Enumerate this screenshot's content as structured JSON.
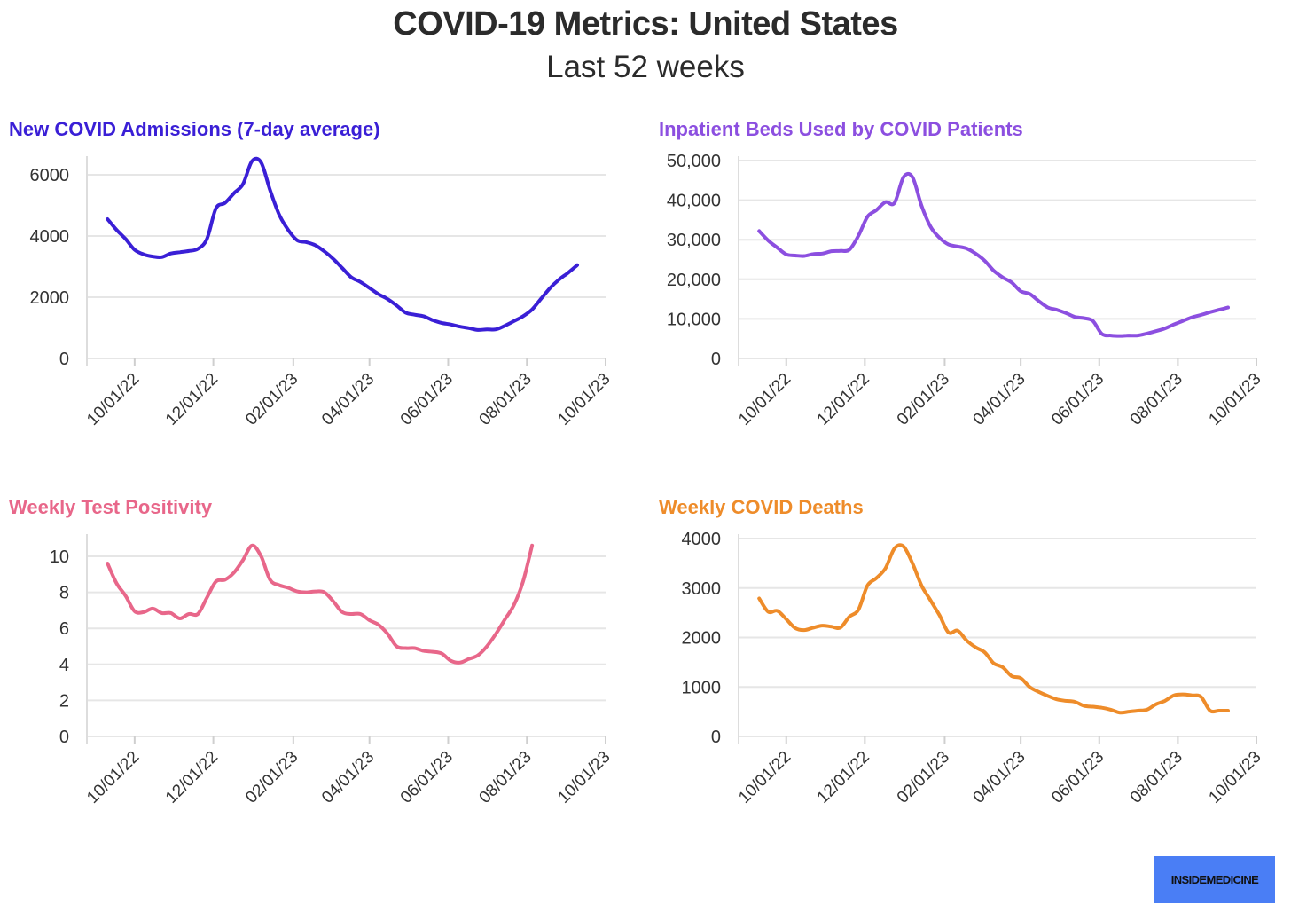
{
  "header": {
    "title": "COVID-19 Metrics: United States",
    "subtitle": "Last 52 weeks"
  },
  "logo": {
    "text": "INSIDEMEDICINE"
  },
  "chart_data": [
    {
      "type": "line",
      "title": "New COVID Admissions (7-day average)",
      "color": "#3a1fd6",
      "ylim": [
        0,
        6600
      ],
      "yticks": [
        0,
        2000,
        4000,
        6000
      ],
      "ytick_labels": [
        "0",
        "2000",
        "4000",
        "6000"
      ],
      "xticks": [
        "10/01/22",
        "12/01/22",
        "02/01/23",
        "04/01/23",
        "06/01/23",
        "08/01/23",
        "10/01/23"
      ],
      "grid": true,
      "series": [
        {
          "x": [
            "2022-09-10",
            "2022-09-17",
            "2022-09-24",
            "2022-10-01",
            "2022-10-08",
            "2022-10-15",
            "2022-10-22",
            "2022-10-29",
            "2022-11-05",
            "2022-11-12",
            "2022-11-19",
            "2022-11-26",
            "2022-12-03",
            "2022-12-10",
            "2022-12-17",
            "2022-12-24",
            "2022-12-31",
            "2023-01-07",
            "2023-01-14",
            "2023-01-21",
            "2023-01-28",
            "2023-02-04",
            "2023-02-11",
            "2023-02-18",
            "2023-02-25",
            "2023-03-04",
            "2023-03-11",
            "2023-03-18",
            "2023-03-25",
            "2023-04-01",
            "2023-04-08",
            "2023-04-15",
            "2023-04-22",
            "2023-04-29",
            "2023-05-06",
            "2023-05-13",
            "2023-05-20",
            "2023-05-27",
            "2023-06-03",
            "2023-06-10",
            "2023-06-17",
            "2023-06-24",
            "2023-07-01",
            "2023-07-08",
            "2023-07-15",
            "2023-07-22",
            "2023-07-29",
            "2023-08-05",
            "2023-08-12",
            "2023-08-19",
            "2023-08-26",
            "2023-09-02",
            "2023-09-09"
          ],
          "values": [
            4550,
            4200,
            3900,
            3550,
            3400,
            3330,
            3310,
            3430,
            3470,
            3510,
            3580,
            3900,
            4900,
            5080,
            5400,
            5700,
            6450,
            6400,
            5500,
            4700,
            4200,
            3860,
            3800,
            3700,
            3500,
            3250,
            2950,
            2650,
            2500,
            2300,
            2100,
            1940,
            1730,
            1500,
            1430,
            1380,
            1250,
            1160,
            1110,
            1040,
            990,
            930,
            950,
            950,
            1070,
            1220,
            1380,
            1600,
            1950,
            2300,
            2580,
            2800,
            3050
          ]
        }
      ]
    },
    {
      "type": "line",
      "title": "Inpatient Beds Used by COVID Patients",
      "color": "#8c4fe0",
      "ylim": [
        0,
        50000
      ],
      "yticks": [
        0,
        10000,
        20000,
        30000,
        40000,
        50000
      ],
      "ytick_labels": [
        "0",
        "10,000",
        "20,000",
        "30,000",
        "40,000",
        "50,000"
      ],
      "xticks": [
        "10/01/22",
        "12/01/22",
        "02/01/23",
        "04/01/23",
        "06/01/23",
        "08/01/23",
        "10/01/23"
      ],
      "grid": true,
      "series": [
        {
          "x": [
            "2022-09-10",
            "2022-09-17",
            "2022-09-24",
            "2022-10-01",
            "2022-10-08",
            "2022-10-15",
            "2022-10-22",
            "2022-10-29",
            "2022-11-05",
            "2022-11-12",
            "2022-11-19",
            "2022-11-26",
            "2022-12-03",
            "2022-12-10",
            "2022-12-17",
            "2022-12-24",
            "2022-12-31",
            "2023-01-07",
            "2023-01-14",
            "2023-01-21",
            "2023-01-28",
            "2023-02-04",
            "2023-02-11",
            "2023-02-18",
            "2023-02-25",
            "2023-03-04",
            "2023-03-11",
            "2023-03-18",
            "2023-03-25",
            "2023-04-01",
            "2023-04-08",
            "2023-04-15",
            "2023-04-22",
            "2023-04-29",
            "2023-05-06",
            "2023-05-13",
            "2023-05-20",
            "2023-05-27",
            "2023-06-03",
            "2023-06-10",
            "2023-06-17",
            "2023-06-24",
            "2023-07-01",
            "2023-07-08",
            "2023-07-15",
            "2023-07-22",
            "2023-07-29",
            "2023-08-05",
            "2023-08-12",
            "2023-08-19",
            "2023-08-26",
            "2023-09-02",
            "2023-09-09"
          ],
          "values": [
            32200,
            29800,
            28000,
            26300,
            26000,
            25900,
            26400,
            26500,
            27100,
            27200,
            27500,
            31000,
            35800,
            37500,
            39500,
            39300,
            45800,
            45800,
            38600,
            33300,
            30500,
            28800,
            28300,
            27800,
            26500,
            24700,
            22200,
            20500,
            19200,
            17000,
            16300,
            14500,
            12900,
            12300,
            11500,
            10500,
            10200,
            9500,
            6200,
            5800,
            5700,
            5800,
            5800,
            6300,
            6900,
            7600,
            8600,
            9500,
            10400,
            11000,
            11700,
            12300,
            12900
          ]
        }
      ]
    },
    {
      "type": "line",
      "title": "Weekly Test Positivity",
      "color": "#e8678a",
      "ylim": [
        0,
        11
      ],
      "yticks": [
        0,
        2,
        4,
        6,
        8,
        10
      ],
      "ytick_labels": [
        "0",
        "2",
        "4",
        "6",
        "8",
        "10"
      ],
      "xticks": [
        "10/01/22",
        "12/01/22",
        "02/01/23",
        "04/01/23",
        "06/01/23",
        "08/01/23",
        "10/01/23"
      ],
      "grid": true,
      "series": [
        {
          "x": [
            "2022-09-10",
            "2022-09-17",
            "2022-09-24",
            "2022-10-01",
            "2022-10-08",
            "2022-10-15",
            "2022-10-22",
            "2022-10-29",
            "2022-11-05",
            "2022-11-12",
            "2022-11-19",
            "2022-11-26",
            "2022-12-03",
            "2022-12-10",
            "2022-12-17",
            "2022-12-24",
            "2022-12-31",
            "2023-01-07",
            "2023-01-14",
            "2023-01-21",
            "2023-01-28",
            "2023-02-04",
            "2023-02-11",
            "2023-02-18",
            "2023-02-25",
            "2023-03-04",
            "2023-03-11",
            "2023-03-18",
            "2023-03-25",
            "2023-04-01",
            "2023-04-08",
            "2023-04-15",
            "2023-04-22",
            "2023-04-29",
            "2023-05-06",
            "2023-05-13",
            "2023-05-20",
            "2023-05-27",
            "2023-06-03",
            "2023-06-10",
            "2023-06-17",
            "2023-06-24",
            "2023-07-01",
            "2023-07-08",
            "2023-07-15",
            "2023-07-22",
            "2023-07-29",
            "2023-08-05"
          ],
          "values": [
            9.6,
            8.5,
            7.8,
            6.95,
            6.9,
            7.1,
            6.85,
            6.85,
            6.55,
            6.8,
            6.8,
            7.7,
            8.6,
            8.7,
            9.1,
            9.8,
            10.6,
            10.0,
            8.7,
            8.4,
            8.25,
            8.05,
            8.0,
            8.05,
            8.0,
            7.5,
            6.9,
            6.8,
            6.8,
            6.45,
            6.2,
            5.7,
            5.0,
            4.9,
            4.9,
            4.75,
            4.7,
            4.6,
            4.2,
            4.1,
            4.3,
            4.5,
            5.0,
            5.7,
            6.5,
            7.3,
            8.6,
            10.6
          ]
        }
      ]
    },
    {
      "type": "line",
      "title": "Weekly COVID Deaths",
      "color": "#ee8c2a",
      "ylim": [
        0,
        4000
      ],
      "yticks": [
        0,
        1000,
        2000,
        3000,
        4000
      ],
      "ytick_labels": [
        "0",
        "1000",
        "2000",
        "3000",
        "4000"
      ],
      "xticks": [
        "10/01/22",
        "12/01/22",
        "02/01/23",
        "04/01/23",
        "06/01/23",
        "08/01/23",
        "10/01/23"
      ],
      "grid": true,
      "series": [
        {
          "x": [
            "2022-09-10",
            "2022-09-17",
            "2022-09-24",
            "2022-10-01",
            "2022-10-08",
            "2022-10-15",
            "2022-10-22",
            "2022-10-29",
            "2022-11-05",
            "2022-11-12",
            "2022-11-19",
            "2022-11-26",
            "2022-12-03",
            "2022-12-10",
            "2022-12-17",
            "2022-12-24",
            "2022-12-31",
            "2023-01-07",
            "2023-01-14",
            "2023-01-21",
            "2023-01-28",
            "2023-02-04",
            "2023-02-11",
            "2023-02-18",
            "2023-02-25",
            "2023-03-04",
            "2023-03-11",
            "2023-03-18",
            "2023-03-25",
            "2023-04-01",
            "2023-04-08",
            "2023-04-15",
            "2023-04-22",
            "2023-04-29",
            "2023-05-06",
            "2023-05-13",
            "2023-05-20",
            "2023-05-27",
            "2023-06-03",
            "2023-06-10",
            "2023-06-17",
            "2023-06-24",
            "2023-07-01",
            "2023-07-08",
            "2023-07-15",
            "2023-07-22",
            "2023-07-29",
            "2023-08-05",
            "2023-08-12",
            "2023-08-19",
            "2023-08-26",
            "2023-09-02",
            "2023-09-09"
          ],
          "values": [
            2790,
            2520,
            2540,
            2370,
            2190,
            2150,
            2200,
            2240,
            2220,
            2200,
            2420,
            2560,
            3050,
            3200,
            3400,
            3800,
            3840,
            3500,
            3050,
            2750,
            2450,
            2100,
            2140,
            1940,
            1800,
            1700,
            1480,
            1400,
            1220,
            1180,
            1000,
            900,
            820,
            750,
            720,
            700,
            620,
            600,
            580,
            540,
            480,
            500,
            520,
            540,
            650,
            720,
            830,
            850,
            830,
            800,
            520,
            520,
            520
          ]
        }
      ]
    }
  ]
}
